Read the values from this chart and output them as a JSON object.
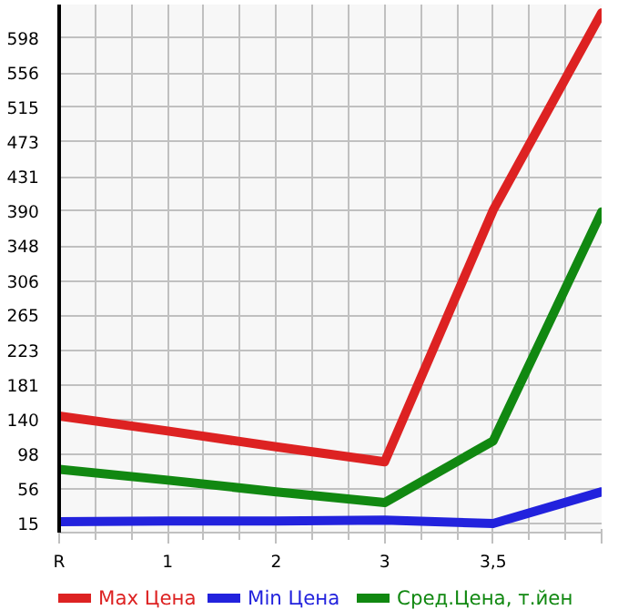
{
  "chart_data": {
    "type": "line",
    "categories": [
      "R",
      "1",
      "2",
      "3",
      "3,5",
      null
    ],
    "series": [
      {
        "name": "Max Цена",
        "color": "#dd2222",
        "values": [
          144,
          126,
          107,
          89,
          391,
          628
        ]
      },
      {
        "name": "Min Цена",
        "color": "#2222dd",
        "values": [
          17,
          18,
          18,
          19,
          15,
          53
        ]
      },
      {
        "name": "Сред.Цена, т.йен",
        "color": "#118811",
        "values": [
          80,
          67,
          53,
          40,
          114,
          389
        ]
      }
    ],
    "ylim": [
      4,
      638
    ],
    "yticks": [
      15,
      56,
      98,
      140,
      181,
      223,
      265,
      306,
      348,
      390,
      431,
      473,
      515,
      556,
      598
    ],
    "grid": true,
    "legend": "bottom",
    "marker": "none",
    "line_style": "solid"
  }
}
